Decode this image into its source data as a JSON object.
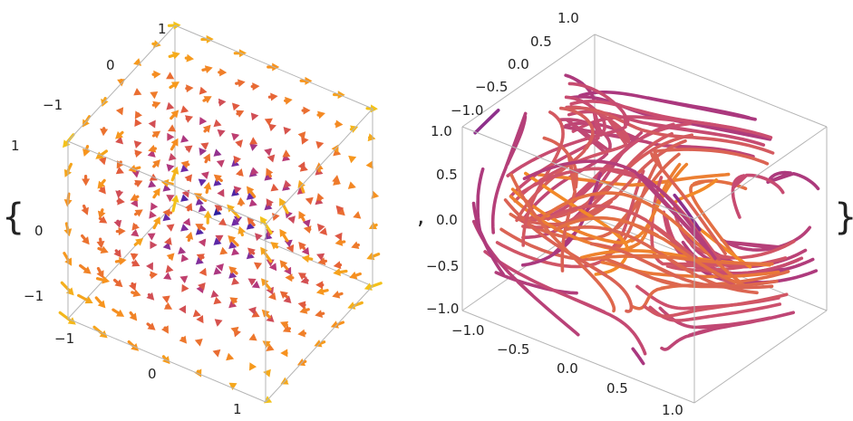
{
  "expression": {
    "open_brace": "{",
    "separator": ",",
    "close_brace": "}"
  },
  "chart_data": [
    {
      "type": "vector-field-3d",
      "xrange": [
        -1.3,
        1.3
      ],
      "yrange": [
        -1.3,
        1.3
      ],
      "zrange": [
        -1.3,
        1.3
      ],
      "x_ticks": [
        "−1",
        "0",
        "1"
      ],
      "y_ticks": [
        "−1",
        "0",
        "1"
      ],
      "z_ticks": [
        "−1",
        "0",
        "1"
      ],
      "title": "",
      "grid": false,
      "colors": [
        "#f3c21a",
        "#f7931e",
        "#e45d3a",
        "#b7397a",
        "#6a2aa8",
        "#2c20a0"
      ]
    },
    {
      "type": "stream-lines-3d",
      "xrange": [
        -1.0,
        1.0
      ],
      "yrange": [
        -1.0,
        1.0
      ],
      "zrange": [
        -1.0,
        1.0
      ],
      "x_ticks": [
        "−1.0",
        "−0.5",
        "0.0",
        "0.5",
        "1.0"
      ],
      "y_ticks": [
        "−1.0",
        "−0.5",
        "0.0",
        "0.5",
        "1.0"
      ],
      "z_ticks": [
        "−1.0",
        "−0.5",
        "0.0",
        "0.5",
        "1.0"
      ],
      "title": "",
      "grid": false,
      "colors": [
        "#f7931e",
        "#e8763a",
        "#cc4f6e",
        "#a9377f",
        "#5b22a3"
      ]
    }
  ]
}
